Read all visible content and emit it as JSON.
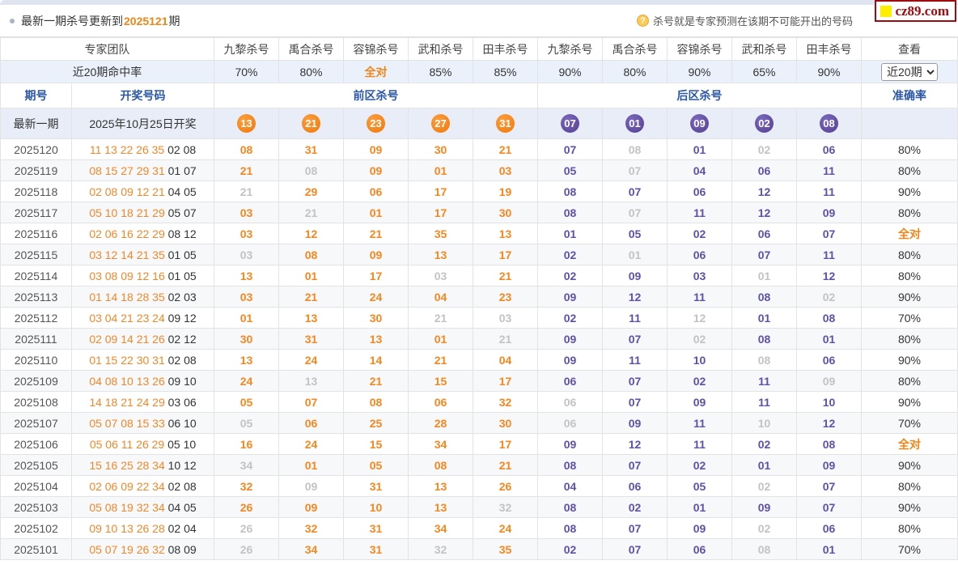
{
  "page": {
    "update_notice_prefix": "最新一期杀号更新到",
    "update_notice_period": "2025121",
    "update_notice_suffix": "期",
    "help_text": "杀号就是专家预测在该期不可能开出的号码",
    "help_icon_glyph": "?",
    "logo_text": "cz89.com"
  },
  "colors": {
    "front_hit_orange": "#f6871f",
    "back_hit_purple": "#5f51a8",
    "miss_gray": "#c3c3c3",
    "header_blue": "#2b57a5",
    "logo_red": "#9e0b0f"
  },
  "experts_header": {
    "team_label": "专家团队",
    "hit_rate_label": "近20期命中率",
    "experts": [
      "九黎杀号",
      "禹合杀号",
      "容锦杀号",
      "武和杀号",
      "田丰杀号",
      "九黎杀号",
      "禹合杀号",
      "容锦杀号",
      "武和杀号",
      "田丰杀号"
    ],
    "hit_rates": [
      "70%",
      "80%",
      "全对",
      "85%",
      "85%",
      "90%",
      "80%",
      "90%",
      "65%",
      "90%"
    ],
    "view_label": "查看",
    "view_select_value": "近20期"
  },
  "table": {
    "period_label": "期号",
    "draw_label": "开奖号码",
    "front_zone_label": "前区杀号",
    "back_zone_label": "后区杀号",
    "accuracy_label": "准确率",
    "all_correct_label": "全对"
  },
  "latest_row": {
    "period_label": "最新一期",
    "draw_label": "2025年10月25日开奖",
    "front_balls": [
      "13",
      "21",
      "23",
      "27",
      "31"
    ],
    "back_balls": [
      "07",
      "01",
      "09",
      "02",
      "08"
    ]
  },
  "rows": [
    {
      "period": "2025120",
      "front_draw": "11 13 22 26 35",
      "back_draw": "02 08",
      "front_kills": [
        {
          "n": "08",
          "hit": true
        },
        {
          "n": "31",
          "hit": true
        },
        {
          "n": "09",
          "hit": true
        },
        {
          "n": "30",
          "hit": true
        },
        {
          "n": "21",
          "hit": true
        }
      ],
      "back_kills": [
        {
          "n": "07",
          "hit": true
        },
        {
          "n": "08",
          "hit": false
        },
        {
          "n": "01",
          "hit": true
        },
        {
          "n": "02",
          "hit": false
        },
        {
          "n": "06",
          "hit": true
        }
      ],
      "accuracy": "80%"
    },
    {
      "period": "2025119",
      "front_draw": "08 15 27 29 31",
      "back_draw": "01 07",
      "front_kills": [
        {
          "n": "21",
          "hit": true
        },
        {
          "n": "08",
          "hit": false
        },
        {
          "n": "09",
          "hit": true
        },
        {
          "n": "01",
          "hit": true
        },
        {
          "n": "03",
          "hit": true
        }
      ],
      "back_kills": [
        {
          "n": "05",
          "hit": true
        },
        {
          "n": "07",
          "hit": false
        },
        {
          "n": "04",
          "hit": true
        },
        {
          "n": "06",
          "hit": true
        },
        {
          "n": "11",
          "hit": true
        }
      ],
      "accuracy": "80%"
    },
    {
      "period": "2025118",
      "front_draw": "02 08 09 12 21",
      "back_draw": "04 05",
      "front_kills": [
        {
          "n": "21",
          "hit": false
        },
        {
          "n": "29",
          "hit": true
        },
        {
          "n": "06",
          "hit": true
        },
        {
          "n": "17",
          "hit": true
        },
        {
          "n": "19",
          "hit": true
        }
      ],
      "back_kills": [
        {
          "n": "08",
          "hit": true
        },
        {
          "n": "07",
          "hit": true
        },
        {
          "n": "06",
          "hit": true
        },
        {
          "n": "12",
          "hit": true
        },
        {
          "n": "11",
          "hit": true
        }
      ],
      "accuracy": "90%"
    },
    {
      "period": "2025117",
      "front_draw": "05 10 18 21 29",
      "back_draw": "05 07",
      "front_kills": [
        {
          "n": "03",
          "hit": true
        },
        {
          "n": "21",
          "hit": false
        },
        {
          "n": "01",
          "hit": true
        },
        {
          "n": "17",
          "hit": true
        },
        {
          "n": "30",
          "hit": true
        }
      ],
      "back_kills": [
        {
          "n": "08",
          "hit": true
        },
        {
          "n": "07",
          "hit": false
        },
        {
          "n": "11",
          "hit": true
        },
        {
          "n": "12",
          "hit": true
        },
        {
          "n": "09",
          "hit": true
        }
      ],
      "accuracy": "80%"
    },
    {
      "period": "2025116",
      "front_draw": "02 06 16 22 29",
      "back_draw": "08 12",
      "front_kills": [
        {
          "n": "03",
          "hit": true
        },
        {
          "n": "12",
          "hit": true
        },
        {
          "n": "21",
          "hit": true
        },
        {
          "n": "35",
          "hit": true
        },
        {
          "n": "13",
          "hit": true
        }
      ],
      "back_kills": [
        {
          "n": "01",
          "hit": true
        },
        {
          "n": "05",
          "hit": true
        },
        {
          "n": "02",
          "hit": true
        },
        {
          "n": "06",
          "hit": true
        },
        {
          "n": "07",
          "hit": true
        }
      ],
      "accuracy": "全对"
    },
    {
      "period": "2025115",
      "front_draw": "03 12 14 21 35",
      "back_draw": "01 05",
      "front_kills": [
        {
          "n": "03",
          "hit": false
        },
        {
          "n": "08",
          "hit": true
        },
        {
          "n": "09",
          "hit": true
        },
        {
          "n": "13",
          "hit": true
        },
        {
          "n": "17",
          "hit": true
        }
      ],
      "back_kills": [
        {
          "n": "02",
          "hit": true
        },
        {
          "n": "01",
          "hit": false
        },
        {
          "n": "06",
          "hit": true
        },
        {
          "n": "07",
          "hit": true
        },
        {
          "n": "11",
          "hit": true
        }
      ],
      "accuracy": "80%"
    },
    {
      "period": "2025114",
      "front_draw": "03 08 09 12 16",
      "back_draw": "01 05",
      "front_kills": [
        {
          "n": "13",
          "hit": true
        },
        {
          "n": "01",
          "hit": true
        },
        {
          "n": "17",
          "hit": true
        },
        {
          "n": "03",
          "hit": false
        },
        {
          "n": "21",
          "hit": true
        }
      ],
      "back_kills": [
        {
          "n": "02",
          "hit": true
        },
        {
          "n": "09",
          "hit": true
        },
        {
          "n": "03",
          "hit": true
        },
        {
          "n": "01",
          "hit": false
        },
        {
          "n": "12",
          "hit": true
        }
      ],
      "accuracy": "80%"
    },
    {
      "period": "2025113",
      "front_draw": "01 14 18 28 35",
      "back_draw": "02 03",
      "front_kills": [
        {
          "n": "03",
          "hit": true
        },
        {
          "n": "21",
          "hit": true
        },
        {
          "n": "24",
          "hit": true
        },
        {
          "n": "04",
          "hit": true
        },
        {
          "n": "23",
          "hit": true
        }
      ],
      "back_kills": [
        {
          "n": "09",
          "hit": true
        },
        {
          "n": "12",
          "hit": true
        },
        {
          "n": "11",
          "hit": true
        },
        {
          "n": "08",
          "hit": true
        },
        {
          "n": "02",
          "hit": false
        }
      ],
      "accuracy": "90%"
    },
    {
      "period": "2025112",
      "front_draw": "03 04 21 23 24",
      "back_draw": "09 12",
      "front_kills": [
        {
          "n": "01",
          "hit": true
        },
        {
          "n": "13",
          "hit": true
        },
        {
          "n": "30",
          "hit": true
        },
        {
          "n": "21",
          "hit": false
        },
        {
          "n": "03",
          "hit": false
        }
      ],
      "back_kills": [
        {
          "n": "02",
          "hit": true
        },
        {
          "n": "11",
          "hit": true
        },
        {
          "n": "12",
          "hit": false
        },
        {
          "n": "01",
          "hit": true
        },
        {
          "n": "08",
          "hit": true
        }
      ],
      "accuracy": "70%"
    },
    {
      "period": "2025111",
      "front_draw": "02 09 14 21 26",
      "back_draw": "02 12",
      "front_kills": [
        {
          "n": "30",
          "hit": true
        },
        {
          "n": "31",
          "hit": true
        },
        {
          "n": "13",
          "hit": true
        },
        {
          "n": "01",
          "hit": true
        },
        {
          "n": "21",
          "hit": false
        }
      ],
      "back_kills": [
        {
          "n": "09",
          "hit": true
        },
        {
          "n": "07",
          "hit": true
        },
        {
          "n": "02",
          "hit": false
        },
        {
          "n": "08",
          "hit": true
        },
        {
          "n": "01",
          "hit": true
        }
      ],
      "accuracy": "80%"
    },
    {
      "period": "2025110",
      "front_draw": "01 15 22 30 31",
      "back_draw": "02 08",
      "front_kills": [
        {
          "n": "13",
          "hit": true
        },
        {
          "n": "24",
          "hit": true
        },
        {
          "n": "14",
          "hit": true
        },
        {
          "n": "21",
          "hit": true
        },
        {
          "n": "04",
          "hit": true
        }
      ],
      "back_kills": [
        {
          "n": "09",
          "hit": true
        },
        {
          "n": "11",
          "hit": true
        },
        {
          "n": "10",
          "hit": true
        },
        {
          "n": "08",
          "hit": false
        },
        {
          "n": "06",
          "hit": true
        }
      ],
      "accuracy": "90%"
    },
    {
      "period": "2025109",
      "front_draw": "04 08 10 13 26",
      "back_draw": "09 10",
      "front_kills": [
        {
          "n": "24",
          "hit": true
        },
        {
          "n": "13",
          "hit": false
        },
        {
          "n": "21",
          "hit": true
        },
        {
          "n": "15",
          "hit": true
        },
        {
          "n": "17",
          "hit": true
        }
      ],
      "back_kills": [
        {
          "n": "06",
          "hit": true
        },
        {
          "n": "07",
          "hit": true
        },
        {
          "n": "02",
          "hit": true
        },
        {
          "n": "11",
          "hit": true
        },
        {
          "n": "09",
          "hit": false
        }
      ],
      "accuracy": "80%"
    },
    {
      "period": "2025108",
      "front_draw": "14 18 21 24 29",
      "back_draw": "03 06",
      "front_kills": [
        {
          "n": "05",
          "hit": true
        },
        {
          "n": "07",
          "hit": true
        },
        {
          "n": "08",
          "hit": true
        },
        {
          "n": "06",
          "hit": true
        },
        {
          "n": "32",
          "hit": true
        }
      ],
      "back_kills": [
        {
          "n": "06",
          "hit": false
        },
        {
          "n": "07",
          "hit": true
        },
        {
          "n": "09",
          "hit": true
        },
        {
          "n": "11",
          "hit": true
        },
        {
          "n": "10",
          "hit": true
        }
      ],
      "accuracy": "90%"
    },
    {
      "period": "2025107",
      "front_draw": "05 07 08 15 33",
      "back_draw": "06 10",
      "front_kills": [
        {
          "n": "05",
          "hit": false
        },
        {
          "n": "06",
          "hit": true
        },
        {
          "n": "25",
          "hit": true
        },
        {
          "n": "28",
          "hit": true
        },
        {
          "n": "30",
          "hit": true
        }
      ],
      "back_kills": [
        {
          "n": "06",
          "hit": false
        },
        {
          "n": "09",
          "hit": true
        },
        {
          "n": "11",
          "hit": true
        },
        {
          "n": "10",
          "hit": false
        },
        {
          "n": "12",
          "hit": true
        }
      ],
      "accuracy": "70%"
    },
    {
      "period": "2025106",
      "front_draw": "05 06 11 26 29",
      "back_draw": "05 10",
      "front_kills": [
        {
          "n": "16",
          "hit": true
        },
        {
          "n": "24",
          "hit": true
        },
        {
          "n": "15",
          "hit": true
        },
        {
          "n": "34",
          "hit": true
        },
        {
          "n": "17",
          "hit": true
        }
      ],
      "back_kills": [
        {
          "n": "09",
          "hit": true
        },
        {
          "n": "12",
          "hit": true
        },
        {
          "n": "11",
          "hit": true
        },
        {
          "n": "02",
          "hit": true
        },
        {
          "n": "08",
          "hit": true
        }
      ],
      "accuracy": "全对"
    },
    {
      "period": "2025105",
      "front_draw": "15 16 25 28 34",
      "back_draw": "10 12",
      "front_kills": [
        {
          "n": "34",
          "hit": false
        },
        {
          "n": "01",
          "hit": true
        },
        {
          "n": "05",
          "hit": true
        },
        {
          "n": "08",
          "hit": true
        },
        {
          "n": "21",
          "hit": true
        }
      ],
      "back_kills": [
        {
          "n": "08",
          "hit": true
        },
        {
          "n": "07",
          "hit": true
        },
        {
          "n": "02",
          "hit": true
        },
        {
          "n": "01",
          "hit": true
        },
        {
          "n": "09",
          "hit": true
        }
      ],
      "accuracy": "90%"
    },
    {
      "period": "2025104",
      "front_draw": "02 06 09 22 34",
      "back_draw": "02 08",
      "front_kills": [
        {
          "n": "32",
          "hit": true
        },
        {
          "n": "09",
          "hit": false
        },
        {
          "n": "31",
          "hit": true
        },
        {
          "n": "13",
          "hit": true
        },
        {
          "n": "26",
          "hit": true
        }
      ],
      "back_kills": [
        {
          "n": "04",
          "hit": true
        },
        {
          "n": "06",
          "hit": true
        },
        {
          "n": "05",
          "hit": true
        },
        {
          "n": "02",
          "hit": false
        },
        {
          "n": "07",
          "hit": true
        }
      ],
      "accuracy": "80%"
    },
    {
      "period": "2025103",
      "front_draw": "05 08 19 32 34",
      "back_draw": "04 05",
      "front_kills": [
        {
          "n": "26",
          "hit": true
        },
        {
          "n": "09",
          "hit": true
        },
        {
          "n": "10",
          "hit": true
        },
        {
          "n": "13",
          "hit": true
        },
        {
          "n": "32",
          "hit": false
        }
      ],
      "back_kills": [
        {
          "n": "08",
          "hit": true
        },
        {
          "n": "02",
          "hit": true
        },
        {
          "n": "01",
          "hit": true
        },
        {
          "n": "09",
          "hit": true
        },
        {
          "n": "07",
          "hit": true
        }
      ],
      "accuracy": "90%"
    },
    {
      "period": "2025102",
      "front_draw": "09 10 13 26 28",
      "back_draw": "02 04",
      "front_kills": [
        {
          "n": "26",
          "hit": false
        },
        {
          "n": "32",
          "hit": true
        },
        {
          "n": "31",
          "hit": true
        },
        {
          "n": "34",
          "hit": true
        },
        {
          "n": "24",
          "hit": true
        }
      ],
      "back_kills": [
        {
          "n": "08",
          "hit": true
        },
        {
          "n": "07",
          "hit": true
        },
        {
          "n": "09",
          "hit": true
        },
        {
          "n": "02",
          "hit": false
        },
        {
          "n": "06",
          "hit": true
        }
      ],
      "accuracy": "80%"
    },
    {
      "period": "2025101",
      "front_draw": "05 07 19 26 32",
      "back_draw": "08 09",
      "front_kills": [
        {
          "n": "26",
          "hit": false
        },
        {
          "n": "34",
          "hit": true
        },
        {
          "n": "31",
          "hit": true
        },
        {
          "n": "32",
          "hit": false
        },
        {
          "n": "35",
          "hit": true
        }
      ],
      "back_kills": [
        {
          "n": "02",
          "hit": true
        },
        {
          "n": "07",
          "hit": true
        },
        {
          "n": "06",
          "hit": true
        },
        {
          "n": "08",
          "hit": false
        },
        {
          "n": "01",
          "hit": true
        }
      ],
      "accuracy": "70%"
    }
  ]
}
